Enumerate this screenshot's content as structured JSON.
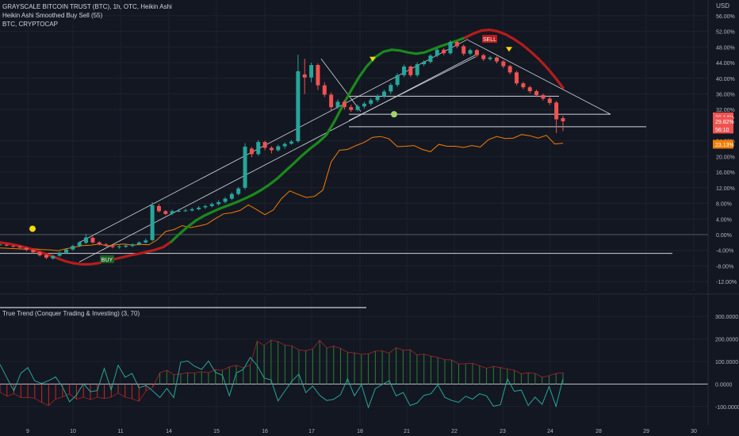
{
  "header": {
    "title_line": "GRAYSCALE BITCOIN TRUST (BTC), 1h, OTC, Heikin Ashi",
    "indicator_line": "Heikin Ashi Smoothed Buy Sell  (55)",
    "compare_line": "BTC, CRYPTOCAP"
  },
  "currency_label": "USD",
  "oscillator_label": "True Trend (Conquer Trading & Investing) (3, 70)",
  "markers": {
    "sell": "SELL",
    "buy": "BUY"
  },
  "colors": {
    "background": "#131722",
    "bull": "#26a69a",
    "bear": "#ef5350",
    "smooth_up": "#1a8a1a",
    "smooth_down": "#b71c1c",
    "compare_line": "#f57c00",
    "osc_line": "#26a69a",
    "marker_yellow": "#f5d90a",
    "marker_green": "#a5d36b"
  },
  "chart_data": {
    "type": "candlestick",
    "ylabel": "%",
    "ylim": [
      -14,
      58
    ],
    "y_tick_labels": [
      "56.00%",
      "52.00%",
      "48.00%",
      "44.00%",
      "40.00%",
      "36.00%",
      "32.00%",
      "24.00%",
      "20.00%",
      "16.00%",
      "12.00%",
      "8.00%",
      "4.00%",
      "0.00%",
      "-4.00%",
      "-8.00%",
      "-12.00%"
    ],
    "x_tick_labels": [
      "9",
      "10",
      "11",
      "14",
      "15",
      "16",
      "17",
      "18",
      "21",
      "22",
      "23",
      "24",
      "28",
      "29",
      "30"
    ],
    "price_tags": [
      {
        "label": "30.14%",
        "value": 30.14,
        "color": "#ef5350"
      },
      {
        "label": "29.82%",
        "value": 29.0,
        "color": "#ef5350"
      },
      {
        "label": "56:10",
        "value": 27.0,
        "color": "#ef5350"
      },
      {
        "label": "23.13%",
        "value": 23.13,
        "color": "#f57c00"
      }
    ],
    "candles": [
      [
        -2.6,
        -2.5,
        -2.4,
        -2.8
      ],
      [
        -2.6,
        -2.8,
        -2.3,
        -3.0
      ],
      [
        -2.9,
        -3.1,
        -2.7,
        -3.3
      ],
      [
        -3.0,
        -3.3,
        -2.8,
        -3.6
      ],
      [
        -3.4,
        -3.9,
        -3.1,
        -4.2
      ],
      [
        -3.9,
        -4.5,
        -3.6,
        -4.8
      ],
      [
        -4.5,
        -5.3,
        -4.2,
        -5.6
      ],
      [
        -5.2,
        -5.9,
        -4.9,
        -6.3
      ],
      [
        -6.1,
        -5.5,
        -5.2,
        -6.4
      ],
      [
        -5.4,
        -4.6,
        -4.3,
        -5.7
      ],
      [
        -4.6,
        -3.8,
        -3.5,
        -4.9
      ],
      [
        -3.8,
        -2.9,
        -2.6,
        -4.1
      ],
      [
        -2.9,
        -2.0,
        -1.7,
        -3.2
      ],
      [
        -2.1,
        -0.7,
        0.2,
        -2.4
      ],
      [
        -0.8,
        -2.0,
        -0.5,
        -2.3
      ],
      [
        -2.0,
        -2.5,
        -1.7,
        -2.8
      ],
      [
        -2.5,
        -2.8,
        -2.2,
        -3.1
      ],
      [
        -2.9,
        -3.2,
        -2.6,
        -3.5
      ],
      [
        -3.2,
        -3.0,
        -2.7,
        -3.6
      ],
      [
        -3.1,
        -2.8,
        -2.5,
        -3.4
      ],
      [
        -2.9,
        -2.5,
        -2.2,
        -3.2
      ],
      [
        -2.5,
        -2.0,
        -1.7,
        -2.8
      ],
      [
        -2.0,
        -1.5,
        -1.0,
        -2.3
      ],
      [
        -1.4,
        7.5,
        8.3,
        -1.7
      ],
      [
        7.3,
        6.0,
        7.8,
        5.7
      ],
      [
        6.0,
        5.3,
        6.3,
        5.0
      ],
      [
        5.4,
        6.0,
        6.4,
        5.0
      ],
      [
        6.0,
        6.1,
        6.6,
        5.7
      ],
      [
        6.1,
        6.2,
        6.6,
        5.8
      ],
      [
        6.2,
        6.5,
        6.9,
        5.9
      ],
      [
        6.5,
        6.9,
        7.3,
        6.2
      ],
      [
        7.0,
        7.3,
        7.7,
        6.6
      ],
      [
        7.3,
        7.8,
        8.2,
        7.0
      ],
      [
        7.8,
        8.3,
        8.8,
        7.4
      ],
      [
        8.4,
        9.2,
        9.6,
        8.0
      ],
      [
        9.2,
        10.4,
        10.8,
        8.8
      ],
      [
        10.4,
        11.8,
        12.2,
        10.0
      ],
      [
        12.0,
        22.5,
        23.4,
        11.5
      ],
      [
        22.0,
        20.6,
        22.4,
        19.8
      ],
      [
        20.6,
        23.7,
        24.2,
        20.2
      ],
      [
        23.7,
        22.2,
        24.0,
        21.6
      ],
      [
        22.2,
        21.6,
        22.6,
        20.8
      ],
      [
        21.6,
        22.6,
        23.0,
        21.2
      ],
      [
        22.6,
        23.2,
        23.6,
        22.0
      ],
      [
        23.3,
        23.8,
        24.2,
        23.0
      ],
      [
        23.9,
        41.8,
        46.0,
        23.5
      ],
      [
        41.0,
        40.2,
        45.0,
        36.0
      ],
      [
        40.2,
        43.4,
        44.0,
        39.0
      ],
      [
        43.4,
        38.2,
        43.8,
        37.0
      ],
      [
        38.2,
        35.8,
        39.0,
        35.2
      ],
      [
        35.8,
        32.6,
        36.4,
        31.8
      ],
      [
        32.6,
        34.0,
        34.6,
        32.2
      ],
      [
        34.0,
        32.6,
        34.5,
        32.0
      ],
      [
        32.6,
        31.9,
        33.2,
        31.4
      ],
      [
        31.9,
        32.8,
        33.3,
        31.5
      ],
      [
        32.8,
        33.5,
        34.0,
        32.3
      ],
      [
        33.5,
        34.4,
        34.9,
        33.0
      ],
      [
        34.4,
        35.4,
        35.9,
        33.9
      ],
      [
        35.4,
        36.6,
        37.1,
        34.9
      ],
      [
        36.6,
        38.3,
        38.8,
        36.0
      ],
      [
        38.3,
        40.8,
        41.3,
        37.8
      ],
      [
        40.8,
        43.0,
        43.5,
        40.3
      ],
      [
        43.0,
        40.8,
        43.3,
        40.3
      ],
      [
        40.8,
        43.6,
        44.1,
        40.3
      ],
      [
        43.6,
        44.2,
        44.6,
        43.1
      ],
      [
        44.2,
        45.8,
        46.2,
        43.8
      ],
      [
        45.8,
        47.3,
        47.7,
        45.4
      ],
      [
        47.3,
        46.4,
        47.7,
        45.9
      ],
      [
        46.4,
        49.3,
        49.7,
        46.0
      ],
      [
        49.3,
        48.2,
        49.6,
        47.7
      ],
      [
        48.2,
        46.3,
        48.6,
        45.8
      ],
      [
        46.3,
        47.2,
        47.6,
        45.9
      ],
      [
        47.2,
        45.9,
        47.5,
        45.4
      ],
      [
        45.9,
        44.9,
        46.3,
        44.4
      ],
      [
        44.9,
        45.3,
        45.7,
        44.5
      ],
      [
        45.3,
        44.3,
        45.6,
        43.8
      ],
      [
        44.3,
        43.1,
        44.6,
        42.6
      ],
      [
        43.1,
        41.5,
        43.4,
        41.0
      ],
      [
        41.5,
        38.7,
        41.9,
        38.2
      ],
      [
        38.7,
        37.7,
        39.1,
        37.2
      ],
      [
        37.7,
        36.7,
        38.1,
        36.2
      ],
      [
        36.7,
        35.7,
        37.1,
        35.2
      ],
      [
        35.7,
        34.8,
        36.1,
        34.3
      ],
      [
        34.8,
        33.7,
        35.2,
        33.2
      ],
      [
        33.8,
        29.5,
        34.2,
        26.0
      ],
      [
        29.8,
        29.0,
        30.4,
        26.5
      ]
    ],
    "smoothed_line": [
      -2.0,
      -2.3,
      -2.7,
      -3.2,
      -3.8,
      -4.5,
      -5.2,
      -6.0,
      -6.8,
      -7.3,
      -7.6,
      -7.6,
      -7.3,
      -6.8,
      -6.3,
      -5.8,
      -5.3,
      -4.9,
      -4.4,
      -3.9,
      -3.2,
      -1.8,
      0.2,
      2.0,
      3.6,
      4.8,
      5.8,
      6.7,
      7.5,
      8.3,
      9.2,
      10.2,
      11.4,
      12.8,
      14.4,
      16.3,
      18.2,
      20.2,
      22.0,
      23.6,
      25.5,
      29.0,
      33.0,
      36.8,
      40.3,
      43.2,
      45.4,
      46.8,
      47.3,
      47.1,
      46.6,
      46.3,
      46.6,
      47.4,
      48.2,
      48.9,
      49.6,
      50.4,
      51.4,
      52.2,
      52.4,
      52.0,
      51.2,
      50.0,
      48.6,
      46.9,
      45.0,
      42.8,
      40.3,
      37.6
    ],
    "smoothed_up_until": 57,
    "compare_line": [
      -3.4,
      -3.5,
      -3.6,
      -3.7,
      -3.6,
      -3.8,
      -3.9,
      -4.1,
      -3.6,
      -3.2,
      -2.8,
      -2.7,
      -2.4,
      -2.9,
      -2.6,
      -2.4,
      -2.7,
      -2.5,
      -2.6,
      -1.3,
      0.8,
      1.3,
      2.3,
      1.8,
      2.2,
      2.7,
      4.1,
      5.3,
      5.6,
      6.2,
      7.6,
      6.4,
      5.1,
      6.3,
      9.2,
      11.2,
      10.3,
      9.5,
      9.8,
      11.4,
      18.6,
      21.6,
      21.8,
      22.8,
      23.6,
      24.9,
      25.1,
      24.5,
      22.5,
      22.6,
      22.8,
      21.8,
      21.2,
      23.1,
      22.6,
      22.6,
      22.3,
      22.8,
      22.4,
      24.3,
      25.1,
      24.6,
      24.7,
      25.6,
      25.3,
      24.7,
      25.4,
      23.2,
      23.4
    ],
    "trend_lines": [
      {
        "x1": 100,
        "y1": -2.0,
        "x2": 590,
        "y2": 50.0
      },
      {
        "x1": 100,
        "y1": -7.0,
        "x2": 600,
        "y2": 46.0
      },
      {
        "x1": 405,
        "y1": 45.0,
        "x2": 455,
        "y2": 31.5
      },
      {
        "x1": 590,
        "y1": 49.8,
        "x2": 770,
        "y2": 30.8
      },
      {
        "x1": 440,
        "y1": 29.2,
        "x2": 600,
        "y2": 45.5
      }
    ],
    "horizontal_levels": [
      {
        "value": 35.4,
        "x_from": 440,
        "x_to": 705
      },
      {
        "value": 30.8,
        "x_from": 440,
        "x_to": 770
      },
      {
        "value": 27.6,
        "x_from": 440,
        "x_to": 815
      },
      {
        "value": -4.8,
        "x_from": 0,
        "x_to": 848
      }
    ],
    "oscillator": {
      "ylim": [
        -160,
        360
      ],
      "y_tick_labels": [
        "300.0000",
        "200.0000",
        "100.0000",
        "0.0000",
        "-100.0000"
      ],
      "zero_label": "0.0000",
      "histogram": [
        -36,
        -54,
        -43,
        -60,
        -59,
        -63,
        -82,
        -95,
        -67,
        -57,
        -44,
        -67,
        -58,
        -69,
        -58,
        -64,
        -58,
        -40,
        -58,
        -65,
        -76,
        -30,
        -14,
        50,
        61,
        42,
        45,
        50,
        49,
        55,
        50,
        64,
        61,
        76,
        83,
        72,
        85,
        190,
        171,
        195,
        189,
        172,
        170,
        151,
        148,
        155,
        194,
        160,
        168,
        158,
        141,
        138,
        132,
        134,
        146,
        147,
        137,
        161,
        150,
        152,
        129,
        133,
        124,
        118,
        108,
        107,
        89,
        90,
        92,
        81,
        70,
        78,
        73,
        67,
        61,
        46,
        50,
        47,
        30,
        37,
        47,
        50
      ],
      "line": [
        87,
        27,
        -30,
        48,
        73,
        14,
        3,
        15,
        32,
        -13,
        -79,
        -49,
        2,
        -34,
        -29,
        69,
        -26,
        83,
        30,
        47,
        -17,
        -6,
        -31,
        -60,
        -19,
        -60,
        97,
        102,
        79,
        65,
        102,
        52,
        39,
        -52,
        49,
        65,
        118,
        82,
        27,
        18,
        -75,
        -30,
        13,
        44,
        -38,
        -9,
        -50,
        -73,
        -68,
        -47,
        23,
        -52,
        -3,
        -104,
        -20,
        -2,
        15,
        -53,
        -37,
        -95,
        -84,
        -50,
        -43,
        -3,
        -59,
        -73,
        -81,
        -54,
        -67,
        -43,
        -52,
        -98,
        -92,
        23,
        -32,
        -27,
        -95,
        -58,
        -90,
        -11,
        -99,
        24
      ],
      "threshold_segment": {
        "value": 325,
        "x_from": 0,
        "x_to": 462
      }
    }
  }
}
